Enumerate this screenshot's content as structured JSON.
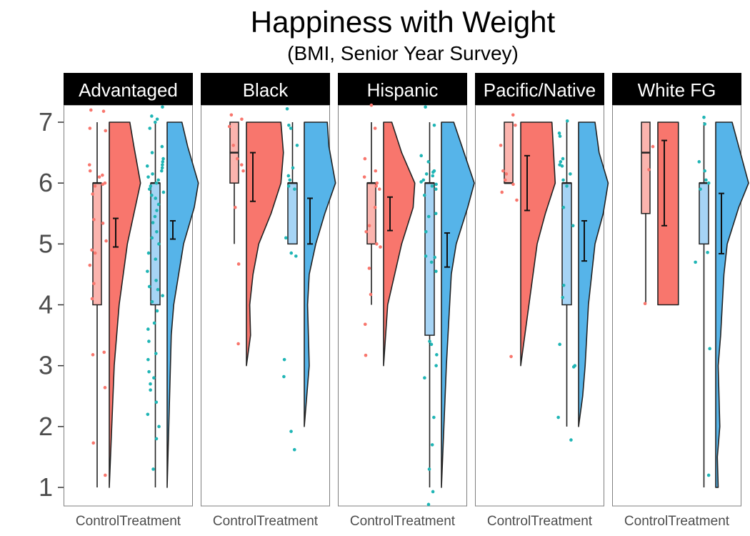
{
  "chart_data": {
    "type": "raincloud",
    "title": "Happiness with Weight",
    "subtitle": "(BMI, Senior Year Survey)",
    "xlabel": "",
    "ylabel": "",
    "ylim": [
      1,
      7
    ],
    "y_ticks": [
      "1",
      "2",
      "3",
      "4",
      "5",
      "6",
      "7"
    ],
    "x_tick_labels": [
      "Control",
      "Treatment"
    ],
    "colors": {
      "Control": "#f8766d",
      "Control_box": "#fbb4ae",
      "Treatment": "#56b4e9",
      "Treatment_box": "#a6d4f5",
      "Control_points": "#f8766d",
      "Treatment_points": "#1fb5b5",
      "strip_bg": "#000000",
      "strip_text": "#ffffff"
    },
    "panels": [
      {
        "label": "Advantaged",
        "groups": {
          "Control": {
            "box": {
              "min": 1,
              "q1": 4,
              "median": 6,
              "q3": 6,
              "max": 7
            },
            "mean": 5.18,
            "ci": [
              4.95,
              5.42
            ],
            "density": [
              [
                1,
                0.0
              ],
              [
                3,
                0.06
              ],
              [
                4,
                0.12
              ],
              [
                5,
                0.22
              ],
              [
                6,
                0.38
              ],
              [
                6.6,
                0.3
              ],
              [
                7,
                0.25
              ]
            ],
            "points": [
              7.2,
              7.18,
              6.86,
              6.9,
              6.3,
              6.2,
              6.13,
              6.1,
              6.0,
              5.98,
              5.95,
              5.82,
              5.4,
              5.34,
              5.05,
              4.9,
              4.85,
              4.65,
              4.35,
              4.1,
              3.22,
              3.18,
              2.64,
              1.73,
              1.2
            ]
          },
          "Treatment": {
            "box": {
              "min": 1,
              "q1": 4,
              "median": 6,
              "q3": 6,
              "max": 7
            },
            "mean": 5.22,
            "ci": [
              5.08,
              5.38
            ],
            "density": [
              [
                1,
                0.0
              ],
              [
                2,
                0.02
              ],
              [
                3,
                0.04
              ],
              [
                3.5,
                0.05
              ],
              [
                4,
                0.08
              ],
              [
                5,
                0.2
              ],
              [
                5.6,
                0.33
              ],
              [
                6,
                0.38
              ],
              [
                6.6,
                0.25
              ],
              [
                7,
                0.18
              ]
            ],
            "points": [
              7.25,
              7.1,
              7.05,
              7.0,
              6.9,
              6.6,
              6.5,
              6.4,
              6.35,
              6.3,
              6.28,
              6.25,
              6.2,
              6.15,
              6.1,
              6.05,
              6.0,
              5.95,
              5.9,
              5.85,
              5.8,
              5.75,
              5.65,
              5.55,
              5.45,
              5.35,
              5.2,
              5.1,
              5.0,
              4.85,
              4.75,
              4.55,
              4.4,
              4.3,
              4.25,
              4.15,
              4.05,
              3.9,
              3.7,
              3.6,
              3.4,
              3.2,
              3.1,
              2.9,
              2.8,
              2.7,
              2.6,
              2.4,
              2.2,
              2.0,
              1.8,
              1.3
            ]
          }
        }
      },
      {
        "label": "Black",
        "groups": {
          "Control": {
            "box": {
              "min": 5,
              "q1": 6,
              "median": 6.5,
              "q3": 7,
              "max": 7
            },
            "mean": 6.1,
            "ci": [
              5.7,
              6.5
            ],
            "density": [
              [
                3,
                0.0
              ],
              [
                3.5,
                0.05
              ],
              [
                4,
                0.04
              ],
              [
                4.5,
                0.08
              ],
              [
                5,
                0.15
              ],
              [
                5.5,
                0.3
              ],
              [
                6,
                0.42
              ],
              [
                6.5,
                0.45
              ],
              [
                7,
                0.42
              ]
            ],
            "points": [
              7.12,
              7.05,
              6.93,
              6.62,
              6.4,
              6.3,
              6.2,
              5.6,
              4.67,
              3.36
            ]
          },
          "Treatment": {
            "box": {
              "min": 5,
              "q1": 5,
              "median": 6,
              "q3": 6,
              "max": 7
            },
            "mean": 5.38,
            "ci": [
              5.0,
              5.75
            ],
            "density": [
              [
                2,
                0.0
              ],
              [
                2.5,
                0.03
              ],
              [
                3,
                0.06
              ],
              [
                3.5,
                0.05
              ],
              [
                4,
                0.04
              ],
              [
                4.5,
                0.06
              ],
              [
                5,
                0.14
              ],
              [
                5.5,
                0.25
              ],
              [
                6,
                0.38
              ],
              [
                6.6,
                0.3
              ],
              [
                7,
                0.28
              ]
            ],
            "points": [
              7.22,
              6.95,
              6.9,
              6.62,
              6.25,
              6.12,
              6.05,
              5.95,
              5.9,
              5.1,
              4.85,
              4.8,
              3.1,
              2.82,
              1.92,
              1.62
            ]
          }
        }
      },
      {
        "label": "Hispanic",
        "groups": {
          "Control": {
            "box": {
              "min": 4,
              "q1": 5,
              "median": 6,
              "q3": 6,
              "max": 7
            },
            "mean": 5.5,
            "ci": [
              5.22,
              5.77
            ],
            "density": [
              [
                3,
                0.0
              ],
              [
                4,
                0.05
              ],
              [
                5,
                0.22
              ],
              [
                5.6,
                0.36
              ],
              [
                6,
                0.38
              ],
              [
                6.5,
                0.22
              ],
              [
                7,
                0.1
              ]
            ],
            "points": [
              7.28,
              6.9,
              6.4,
              6.2,
              6.1,
              6.0,
              5.95,
              5.9,
              5.6,
              5.3,
              5.2,
              5.0,
              4.95,
              4.6,
              4.17,
              3.68,
              3.17
            ]
          },
          "Treatment": {
            "box": {
              "min": 1,
              "q1": 3.5,
              "median": 6,
              "q3": 6,
              "max": 7
            },
            "mean": 4.9,
            "ci": [
              4.62,
              5.18
            ],
            "density": [
              [
                1,
                0.0
              ],
              [
                2,
                0.03
              ],
              [
                3,
                0.06
              ],
              [
                4,
                0.1
              ],
              [
                4.5,
                0.12
              ],
              [
                5,
                0.18
              ],
              [
                5.6,
                0.32
              ],
              [
                6,
                0.4
              ],
              [
                6.6,
                0.25
              ],
              [
                7,
                0.15
              ]
            ],
            "points": [
              7.25,
              6.95,
              6.45,
              6.35,
              6.2,
              6.18,
              6.15,
              6.12,
              6.05,
              6.02,
              5.98,
              5.95,
              5.9,
              5.8,
              5.5,
              5.45,
              5.2,
              4.8,
              4.78,
              4.7,
              4.55,
              3.4,
              3.35,
              3.18,
              3.0,
              2.8,
              2.15,
              1.7,
              1.3,
              0.93,
              0.72
            ]
          }
        }
      },
      {
        "label": "Pacific/Native",
        "groups": {
          "Control": {
            "box": {
              "min": 6,
              "q1": 6,
              "median": 6,
              "q3": 7,
              "max": 7
            },
            "mean": 6.0,
            "ci": [
              5.55,
              6.45
            ],
            "density": [
              [
                3,
                0.0
              ],
              [
                3.5,
                0.05
              ],
              [
                4,
                0.1
              ],
              [
                4.5,
                0.15
              ],
              [
                5,
                0.2
              ],
              [
                5.5,
                0.3
              ],
              [
                6,
                0.42
              ],
              [
                6.5,
                0.4
              ],
              [
                7,
                0.38
              ]
            ],
            "points": [
              7.12,
              6.95,
              6.62,
              6.2,
              6.15,
              6.05,
              5.98,
              5.85,
              5.72,
              3.15
            ]
          },
          "Treatment": {
            "box": {
              "min": 2,
              "q1": 4,
              "median": 6,
              "q3": 6,
              "max": 7
            },
            "mean": 5.05,
            "ci": [
              4.72,
              5.38
            ],
            "density": [
              [
                2,
                0.0
              ],
              [
                2.5,
                0.05
              ],
              [
                3,
                0.08
              ],
              [
                3.5,
                0.1
              ],
              [
                4,
                0.12
              ],
              [
                4.5,
                0.16
              ],
              [
                5,
                0.2
              ],
              [
                5.5,
                0.3
              ],
              [
                6,
                0.36
              ],
              [
                6.5,
                0.25
              ],
              [
                7,
                0.2
              ]
            ],
            "points": [
              7.02,
              6.82,
              6.77,
              6.4,
              6.35,
              6.3,
              6.28,
              6.15,
              6.05,
              5.95,
              5.6,
              5.3,
              4.32,
              4.12,
              3.35,
              3.0,
              2.98,
              2.15,
              1.78
            ]
          }
        }
      },
      {
        "label": "White FG",
        "groups": {
          "Control": {
            "box": {
              "min": 4,
              "q1": 5.5,
              "median": 6.5,
              "q3": 7,
              "max": 7
            },
            "mean": 6.0,
            "ci": [
              5.3,
              6.7
            ],
            "density": [
              [
                4,
                0.25
              ],
              [
                5,
                0.25
              ],
              [
                6,
                0.25
              ],
              [
                7,
                0.25
              ]
            ],
            "points": [
              6.6,
              6.22,
              4.02
            ]
          },
          "Treatment": {
            "box": {
              "min": 1,
              "q1": 5,
              "median": 6,
              "q3": 6,
              "max": 7
            },
            "mean": 5.33,
            "ci": [
              4.84,
              5.83
            ],
            "density": [
              [
                1,
                0.03
              ],
              [
                1.5,
                0.02
              ],
              [
                2,
                0.05
              ],
              [
                2.5,
                0.04
              ],
              [
                3,
                0.03
              ],
              [
                3.5,
                0.06
              ],
              [
                4,
                0.08
              ],
              [
                4.5,
                0.1
              ],
              [
                5,
                0.14
              ],
              [
                5.6,
                0.28
              ],
              [
                6,
                0.4
              ],
              [
                6.5,
                0.3
              ],
              [
                7,
                0.2
              ]
            ],
            "points": [
              7.08,
              6.97,
              6.35,
              6.2,
              6.05,
              6.0,
              5.9,
              4.86,
              4.7,
              3.28,
              1.2
            ]
          }
        }
      }
    ]
  }
}
